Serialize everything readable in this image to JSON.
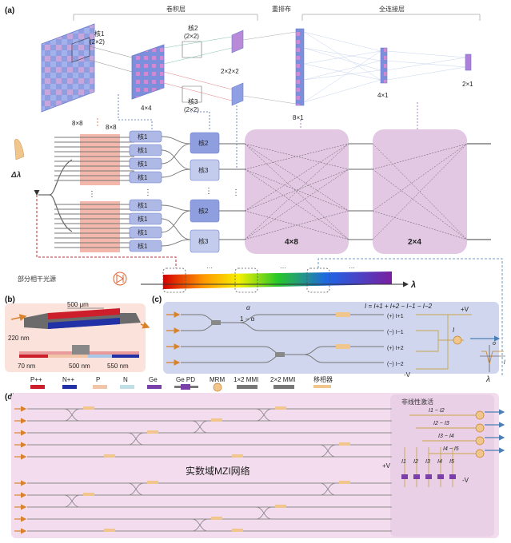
{
  "panels": {
    "a": "(a)",
    "b": "(b)",
    "c": "(c)",
    "d": "(d)"
  },
  "header": {
    "conv": "卷积层",
    "reshape": "重排布",
    "fc": "全连接层"
  },
  "kernels": {
    "k1_name": "核1",
    "k1_size": "(2×2)",
    "k2_name": "核2",
    "k2_size": "(2×2)",
    "k3_name": "核3",
    "k3_size": "(2×2)"
  },
  "sizes": {
    "s8x8": "8×8",
    "s4x4": "4×4",
    "s2x2x2": "2×2×2",
    "s8x1": "8×1",
    "s4x1": "4×1",
    "s2x1": "2×1",
    "m4x8": "4×8",
    "m2x4": "2×4"
  },
  "blocks": {
    "k1": "核1",
    "k2": "核2",
    "k3": "核3"
  },
  "dots": "⋮",
  "hdots": "···",
  "delta_lambda": "Δλ",
  "source_label": "部分相干光源",
  "lambda": "λ",
  "panel_b": {
    "w500um": "500 μm",
    "t220": "220 nm",
    "w70": "70 nm",
    "w500": "500 nm",
    "w550": "550 nm"
  },
  "panel_c": {
    "alpha": "α",
    "one_minus_alpha": "1 − α",
    "formula": "I = I+1 + I+2 − I−1 − I−2",
    "plusV": "+V",
    "minusV": "-V",
    "rows": [
      "(+) I+1",
      "(−) I−1",
      "(+) I+2",
      "(−) I−2"
    ],
    "I": "I",
    "o_axis": "o",
    "l_axis": "l"
  },
  "legend": [
    "P++",
    "N++",
    "P",
    "N",
    "Ge",
    "Ge PD",
    "MRM",
    "1×2 MMI",
    "2×2 MMI",
    "移相器"
  ],
  "panel_d": {
    "nonlinear": "非线性激活",
    "network": "实数域MZI网络",
    "diffs": [
      "I1 − I2",
      "I2 − I3",
      "I3 − I4",
      "I4 − I5"
    ],
    "cols": [
      "I1",
      "I2",
      "I3",
      "I4",
      "I5"
    ],
    "plusV": "+V",
    "minusV": "-V"
  },
  "colors": {
    "accent_blue": "#6a7fd0",
    "pink": "#d9a8d6",
    "purple_panel": "#e3c8e3",
    "kernel_blue": "#aeb9e6",
    "orange": "#d9822b"
  }
}
